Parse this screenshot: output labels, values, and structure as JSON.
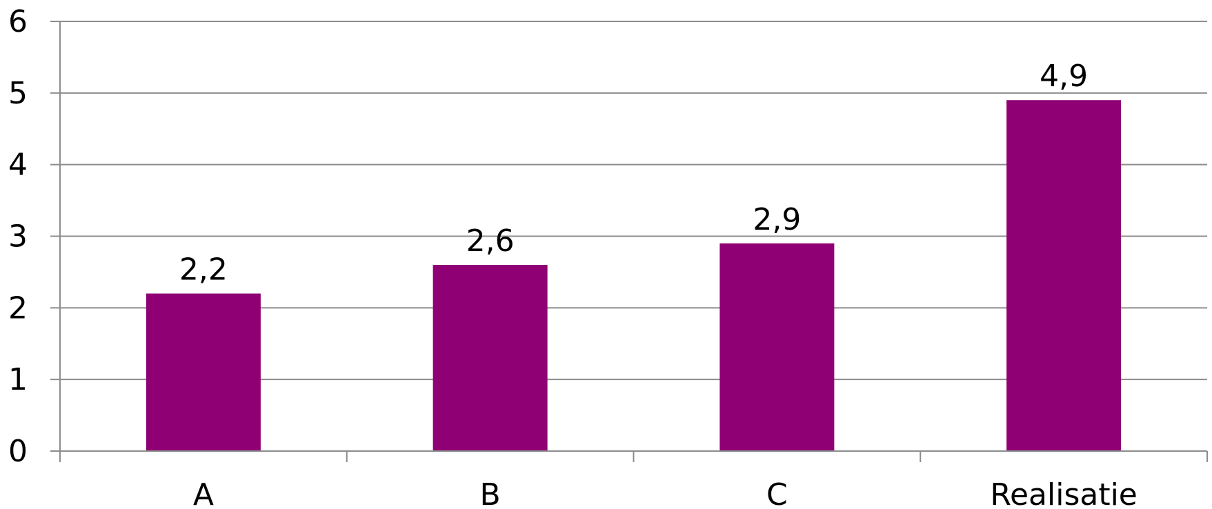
{
  "chart_data": {
    "type": "bar",
    "categories": [
      "A",
      "B",
      "C",
      "Realisatie"
    ],
    "values": [
      2.2,
      2.6,
      2.9,
      4.9
    ],
    "value_labels": [
      "2,2",
      "2,6",
      "2,9",
      "4,9"
    ],
    "title": "",
    "xlabel": "",
    "ylabel": "",
    "ylim": [
      0,
      6
    ],
    "yticks": [
      0,
      1,
      2,
      3,
      4,
      5,
      6
    ],
    "grid": true,
    "legend": "none",
    "bar_color": "#8e0073",
    "grid_color": "#8c8c8c"
  }
}
